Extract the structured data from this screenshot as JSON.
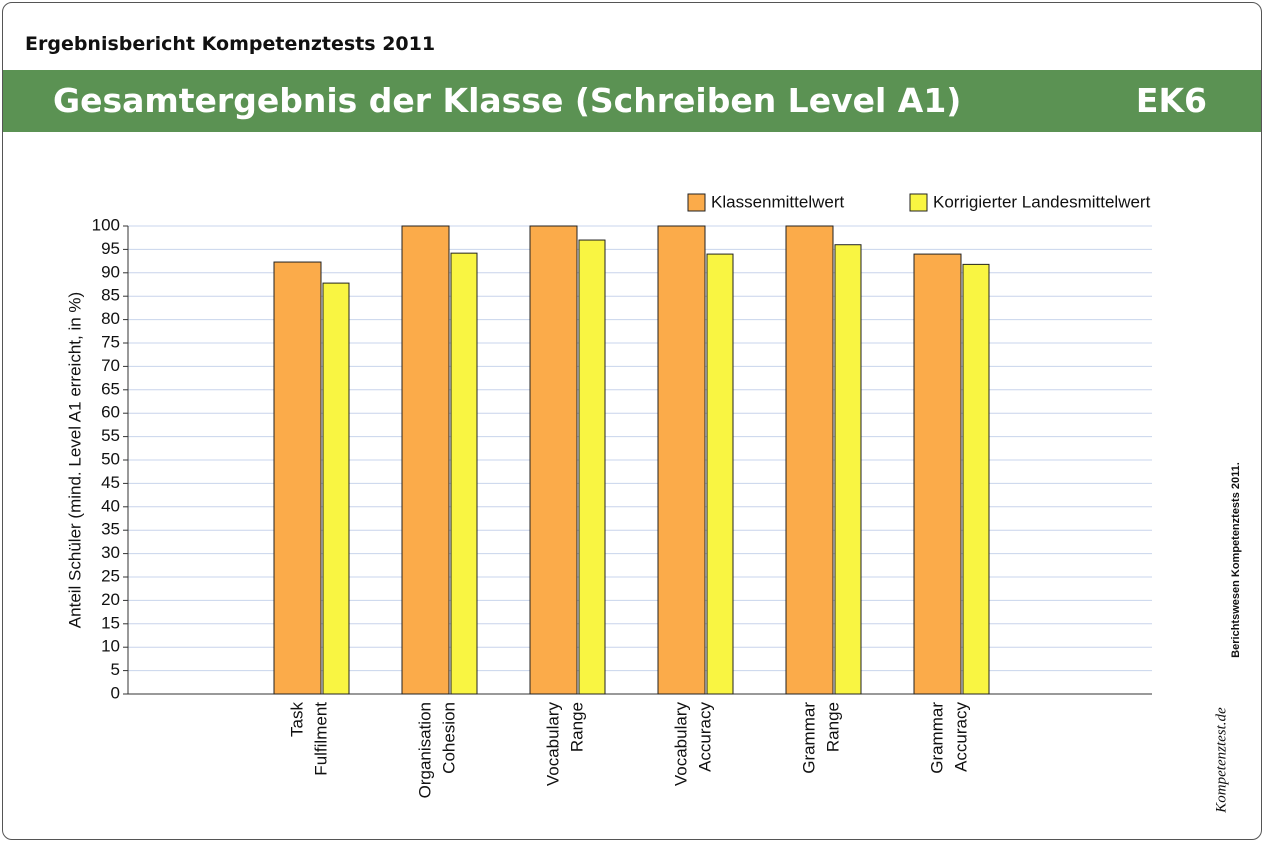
{
  "header": {
    "title": "Ergebnisbericht Kompetenztests 2011"
  },
  "banner": {
    "title": "Gesamtergebnis der Klasse (Schreiben Level A1)",
    "code": "EK6"
  },
  "chart_data": {
    "type": "bar",
    "ylabel": "Anteil Schüler (mind. Level A1 erreicht, in %)",
    "categories": [
      null,
      [
        "Task",
        "Fulfilment"
      ],
      [
        "Organisation",
        "Cohesion"
      ],
      [
        "Vocabulary",
        "Range"
      ],
      [
        "Vocabulary",
        "Accuracy"
      ],
      [
        "Grammar",
        "Range"
      ],
      [
        "Grammar",
        "Accuracy"
      ],
      null
    ],
    "series": [
      {
        "name": "Klassenmittelwert",
        "color": "#fbab4a",
        "values": [
          null,
          92.3,
          100,
          100,
          100,
          100,
          94,
          null
        ]
      },
      {
        "name": "Korrigierter Landesmittelwert",
        "color": "#f9f542",
        "values": [
          null,
          87.8,
          94.2,
          97,
          94,
          96,
          91.8,
          null
        ]
      }
    ],
    "ylim": [
      0,
      100
    ],
    "yticks": [
      0,
      5,
      10,
      15,
      20,
      25,
      30,
      35,
      40,
      45,
      50,
      55,
      60,
      65,
      70,
      75,
      80,
      85,
      90,
      95,
      100
    ],
    "grid": true,
    "legend": "top-right"
  },
  "footer": {
    "note": "Berichtswesen Kompetenztests 2011.",
    "logo": "Kompetenztest.de"
  }
}
